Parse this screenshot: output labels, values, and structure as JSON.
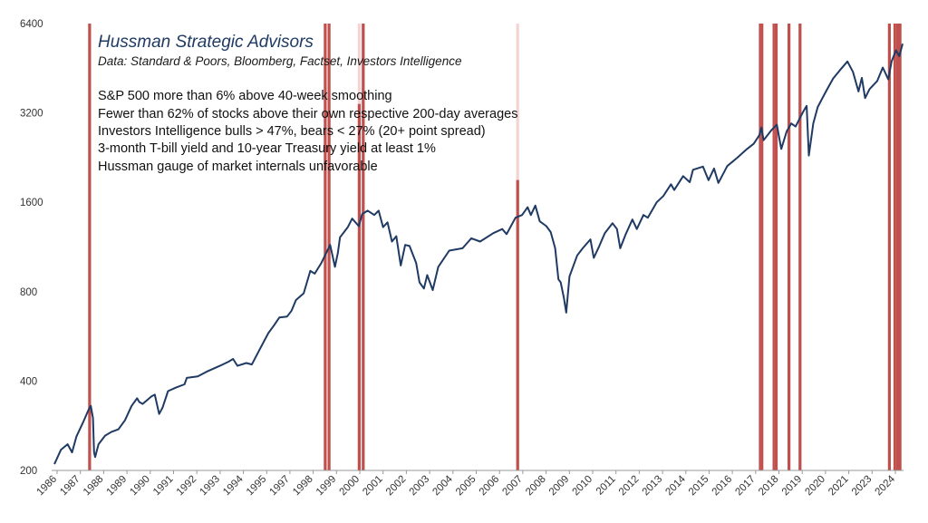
{
  "chart_data": {
    "type": "line",
    "title": "Hussman Strategic Advisors",
    "subtitle": "Data: Standard & Poors, Bloomberg, Factset, Investors Intelligence",
    "conditions": [
      "S&P 500 more than 6% above 40-week smoothing",
      "Fewer than 62% of stocks above their own respective  200-day averages",
      "Investors Intelligence bulls > 47%, bears < 27% (20+ point spread)",
      "3-month T-bill yield and 10-year Treasury yield at least 1%",
      "Hussman gauge of market internals unfavorable"
    ],
    "xlabel": "",
    "ylabel": "",
    "y_scale": "log",
    "ylim": [
      200,
      6400
    ],
    "xlim": [
      1986.0,
      2024.45
    ],
    "y_ticks": [
      200,
      400,
      800,
      1600,
      3200,
      6400
    ],
    "x_tick_labels": [
      "1986",
      "1987",
      "1988",
      "1989",
      "1990",
      "1991",
      "1992",
      "1993",
      "1994",
      "1995",
      "1997",
      "1998",
      "1999",
      "2000",
      "2001",
      "2002",
      "2003",
      "2004",
      "2005",
      "2006",
      "2007",
      "2008",
      "2009",
      "2010",
      "2011",
      "2012",
      "2013",
      "2014",
      "2015",
      "2016",
      "2017",
      "2018",
      "2019",
      "2020",
      "2021",
      "2023",
      "2024"
    ],
    "grid": false,
    "series": [
      {
        "name": "S&P 500",
        "color": "#1f3a63",
        "points": [
          [
            1986.0,
            210
          ],
          [
            1986.3,
            235
          ],
          [
            1986.6,
            245
          ],
          [
            1986.8,
            230
          ],
          [
            1987.0,
            260
          ],
          [
            1987.3,
            290
          ],
          [
            1987.55,
            320
          ],
          [
            1987.65,
            330
          ],
          [
            1987.75,
            300
          ],
          [
            1987.8,
            230
          ],
          [
            1987.85,
            222
          ],
          [
            1988.0,
            245
          ],
          [
            1988.3,
            262
          ],
          [
            1988.6,
            270
          ],
          [
            1988.9,
            275
          ],
          [
            1989.2,
            295
          ],
          [
            1989.5,
            330
          ],
          [
            1989.75,
            350
          ],
          [
            1989.85,
            340
          ],
          [
            1990.0,
            335
          ],
          [
            1990.4,
            355
          ],
          [
            1990.55,
            360
          ],
          [
            1990.75,
            310
          ],
          [
            1990.9,
            325
          ],
          [
            1991.15,
            370
          ],
          [
            1991.5,
            380
          ],
          [
            1991.9,
            390
          ],
          [
            1992.0,
            410
          ],
          [
            1992.5,
            415
          ],
          [
            1992.9,
            430
          ],
          [
            1993.5,
            450
          ],
          [
            1993.9,
            465
          ],
          [
            1994.1,
            475
          ],
          [
            1994.3,
            450
          ],
          [
            1994.7,
            460
          ],
          [
            1994.95,
            455
          ],
          [
            1995.3,
            510
          ],
          [
            1995.7,
            580
          ],
          [
            1995.95,
            615
          ],
          [
            1996.2,
            655
          ],
          [
            1996.55,
            660
          ],
          [
            1996.75,
            690
          ],
          [
            1996.95,
            750
          ],
          [
            1997.3,
            790
          ],
          [
            1997.6,
            940
          ],
          [
            1997.8,
            920
          ],
          [
            1998.1,
            1000
          ],
          [
            1998.5,
            1150
          ],
          [
            1998.72,
            970
          ],
          [
            1998.85,
            1080
          ],
          [
            1998.95,
            1220
          ],
          [
            1999.3,
            1320
          ],
          [
            1999.5,
            1410
          ],
          [
            1999.8,
            1330
          ],
          [
            1999.95,
            1460
          ],
          [
            2000.2,
            1500
          ],
          [
            2000.5,
            1450
          ],
          [
            2000.7,
            1500
          ],
          [
            2000.9,
            1320
          ],
          [
            2001.1,
            1370
          ],
          [
            2001.3,
            1180
          ],
          [
            2001.5,
            1230
          ],
          [
            2001.7,
            980
          ],
          [
            2001.9,
            1150
          ],
          [
            2002.1,
            1140
          ],
          [
            2002.4,
            1000
          ],
          [
            2002.55,
            860
          ],
          [
            2002.75,
            820
          ],
          [
            2002.9,
            910
          ],
          [
            2003.15,
            810
          ],
          [
            2003.4,
            970
          ],
          [
            2003.9,
            1100
          ],
          [
            2004.5,
            1120
          ],
          [
            2004.9,
            1210
          ],
          [
            2005.3,
            1180
          ],
          [
            2005.9,
            1260
          ],
          [
            2006.3,
            1300
          ],
          [
            2006.5,
            1250
          ],
          [
            2006.9,
            1420
          ],
          [
            2007.2,
            1450
          ],
          [
            2007.45,
            1540
          ],
          [
            2007.6,
            1450
          ],
          [
            2007.8,
            1560
          ],
          [
            2008.0,
            1380
          ],
          [
            2008.3,
            1330
          ],
          [
            2008.5,
            1270
          ],
          [
            2008.7,
            1120
          ],
          [
            2008.85,
            880
          ],
          [
            2008.95,
            860
          ],
          [
            2009.1,
            760
          ],
          [
            2009.2,
            680
          ],
          [
            2009.35,
            900
          ],
          [
            2009.7,
            1060
          ],
          [
            2009.95,
            1120
          ],
          [
            2010.3,
            1200
          ],
          [
            2010.45,
            1040
          ],
          [
            2010.7,
            1140
          ],
          [
            2010.95,
            1260
          ],
          [
            2011.3,
            1360
          ],
          [
            2011.5,
            1300
          ],
          [
            2011.65,
            1120
          ],
          [
            2011.9,
            1250
          ],
          [
            2012.2,
            1400
          ],
          [
            2012.4,
            1300
          ],
          [
            2012.7,
            1450
          ],
          [
            2012.9,
            1420
          ],
          [
            2013.3,
            1600
          ],
          [
            2013.6,
            1680
          ],
          [
            2013.95,
            1840
          ],
          [
            2014.1,
            1760
          ],
          [
            2014.5,
            1960
          ],
          [
            2014.8,
            1870
          ],
          [
            2014.95,
            2060
          ],
          [
            2015.4,
            2110
          ],
          [
            2015.65,
            1900
          ],
          [
            2015.9,
            2080
          ],
          [
            2016.1,
            1860
          ],
          [
            2016.5,
            2120
          ],
          [
            2016.95,
            2260
          ],
          [
            2017.4,
            2420
          ],
          [
            2017.7,
            2520
          ],
          [
            2017.95,
            2690
          ],
          [
            2018.05,
            2860
          ],
          [
            2018.15,
            2590
          ],
          [
            2018.5,
            2800
          ],
          [
            2018.75,
            2920
          ],
          [
            2018.95,
            2420
          ],
          [
            2019.2,
            2780
          ],
          [
            2019.4,
            2950
          ],
          [
            2019.6,
            2880
          ],
          [
            2019.95,
            3240
          ],
          [
            2020.1,
            3380
          ],
          [
            2020.2,
            2300
          ],
          [
            2020.4,
            2950
          ],
          [
            2020.6,
            3350
          ],
          [
            2020.95,
            3750
          ],
          [
            2021.3,
            4180
          ],
          [
            2021.6,
            4450
          ],
          [
            2021.95,
            4770
          ],
          [
            2022.2,
            4400
          ],
          [
            2022.45,
            3780
          ],
          [
            2022.6,
            4200
          ],
          [
            2022.75,
            3590
          ],
          [
            2022.95,
            3850
          ],
          [
            2023.3,
            4100
          ],
          [
            2023.55,
            4550
          ],
          [
            2023.8,
            4150
          ],
          [
            2023.95,
            4770
          ],
          [
            2024.15,
            5200
          ],
          [
            2024.3,
            4970
          ],
          [
            2024.45,
            5470
          ]
        ]
      }
    ],
    "signals": {
      "color": "#c0504d",
      "events": [
        {
          "date": 1987.6,
          "level": 1.0
        },
        {
          "date": 1998.28,
          "level": 1.0
        },
        {
          "date": 1998.45,
          "level": 1.0
        },
        {
          "date": 1999.82,
          "level": 0.82
        },
        {
          "date": 2000.0,
          "level": 1.0
        },
        {
          "date": 2007.0,
          "level": 0.65
        },
        {
          "date": 2018.0,
          "level": 1.0
        },
        {
          "date": 2018.07,
          "level": 1.0
        },
        {
          "date": 2018.62,
          "level": 1.0
        },
        {
          "date": 2018.72,
          "level": 1.0
        },
        {
          "date": 2019.3,
          "level": 1.0
        },
        {
          "date": 2019.8,
          "level": 1.0
        },
        {
          "date": 2023.85,
          "level": 1.0
        },
        {
          "date": 2024.1,
          "level": 1.0
        },
        {
          "date": 2024.22,
          "level": 1.0
        },
        {
          "date": 2024.33,
          "level": 1.0
        }
      ]
    }
  }
}
